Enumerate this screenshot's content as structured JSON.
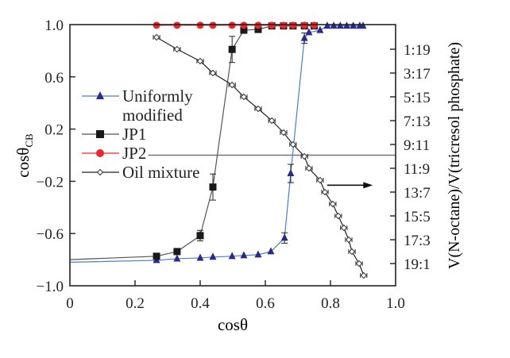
{
  "chart_data": {
    "type": "line",
    "xlabel": "cosθ",
    "ylabel": "cosθ",
    "ylabel_sub": "CB",
    "y2label": "V(N-octane)/V(tricresol phosphate)",
    "xlim": [
      0,
      1.0
    ],
    "ylim": [
      -1.0,
      1.0
    ],
    "xticks": [
      "0",
      "0.2",
      "0.4",
      "0.6",
      "0.8",
      "1.0"
    ],
    "xtick_values": [
      0,
      0.2,
      0.4,
      0.6,
      0.8,
      1.0
    ],
    "yticks": [
      "1.0",
      "0.6",
      "0.2",
      "−0.2",
      "−0.6",
      "−1.0"
    ],
    "ytick_values": [
      1.0,
      0.6,
      0.2,
      -0.2,
      -0.6,
      -1.0
    ],
    "y2lim": [
      0,
      20
    ],
    "y2ticks": [
      "1:19",
      "3:17",
      "5:15",
      "7:13",
      "9:11",
      "11:9",
      "13:7",
      "15:5",
      "17:3",
      "19:1"
    ],
    "y2tick_values": [
      1,
      3,
      5,
      7,
      9,
      11,
      13,
      15,
      17,
      19
    ],
    "grid": false,
    "legend_placement": "left-middle",
    "series": [
      {
        "name": "Uniformly modified",
        "legend_lines": [
          "Uniformly",
          "modified"
        ],
        "color": "#2b2a8c",
        "line_color": "#4a7fc1",
        "marker": "triangle",
        "x": [
          0,
          0.266,
          0.329,
          0.4,
          0.439,
          0.498,
          0.534,
          0.578,
          0.617,
          0.659,
          0.678,
          0.72,
          0.734,
          0.768,
          0.79,
          0.81,
          0.83,
          0.85,
          0.87,
          0.89,
          0.9
        ],
        "y": [
          -0.82,
          -0.805,
          -0.793,
          -0.787,
          -0.78,
          -0.774,
          -0.768,
          -0.762,
          -0.738,
          -0.634,
          -0.14,
          0.896,
          0.94,
          0.957,
          0.99,
          0.99,
          0.99,
          0.99,
          0.99,
          0.99,
          0.99
        ],
        "yerr": [
          0,
          0.01,
          0.01,
          0.01,
          0.01,
          0.01,
          0.01,
          0.01,
          0.01,
          0.04,
          0.07,
          0.04,
          0.01,
          0.01,
          0,
          0,
          0,
          0,
          0,
          0,
          0
        ]
      },
      {
        "name": "JP1",
        "color": "#1a1a1a",
        "line_color": "#555555",
        "marker": "square",
        "x": [
          0,
          0.266,
          0.329,
          0.4,
          0.439,
          0.498,
          0.534,
          0.578,
          0.62,
          0.656,
          0.685,
          0.72,
          0.75
        ],
        "y": [
          -0.8,
          -0.774,
          -0.738,
          -0.616,
          -0.244,
          0.81,
          0.957,
          0.963,
          0.99,
          0.99,
          0.99,
          0.99,
          0.99
        ],
        "yerr": [
          0,
          0.015,
          0.02,
          0.04,
          0.1,
          0.1,
          0.01,
          0.01,
          0,
          0,
          0,
          0,
          0
        ]
      },
      {
        "name": "JP2",
        "color": "#e8262b",
        "line_color": "#e8262b",
        "marker": "circle",
        "x": [
          0.266,
          0.329,
          0.4,
          0.439,
          0.498,
          0.534,
          0.578,
          0.62,
          0.656,
          0.685,
          0.72,
          0.75
        ],
        "y": [
          0.995,
          0.995,
          0.995,
          0.995,
          0.995,
          0.995,
          0.995,
          0.995,
          0.995,
          0.995,
          0.995,
          0.995
        ]
      },
      {
        "name": "Oil mixture",
        "axis": "right",
        "color": "#333333",
        "line_color": "#222222",
        "marker": "open-diamond",
        "x": [
          0.266,
          0.329,
          0.4,
          0.439,
          0.498,
          0.534,
          0.578,
          0.62,
          0.656,
          0.685,
          0.72,
          0.734,
          0.768,
          0.783,
          0.807,
          0.824,
          0.841,
          0.856,
          0.866,
          0.888,
          0.902
        ],
        "y2": [
          0,
          1,
          2,
          3,
          4,
          5,
          6,
          7,
          8,
          9,
          10,
          11,
          12,
          13,
          14,
          15,
          16,
          17,
          18,
          19,
          20
        ],
        "xerr": 0.01
      }
    ],
    "annotations": [
      {
        "type": "horizontal-line",
        "y": 0.0,
        "x_from": 0.24,
        "x_to": 1.0,
        "color": "#777777"
      },
      {
        "type": "arrow",
        "direction": "right",
        "x_from": 0.79,
        "x_to": 0.93,
        "y": -0.23,
        "meaning": "points to right axis"
      }
    ]
  }
}
